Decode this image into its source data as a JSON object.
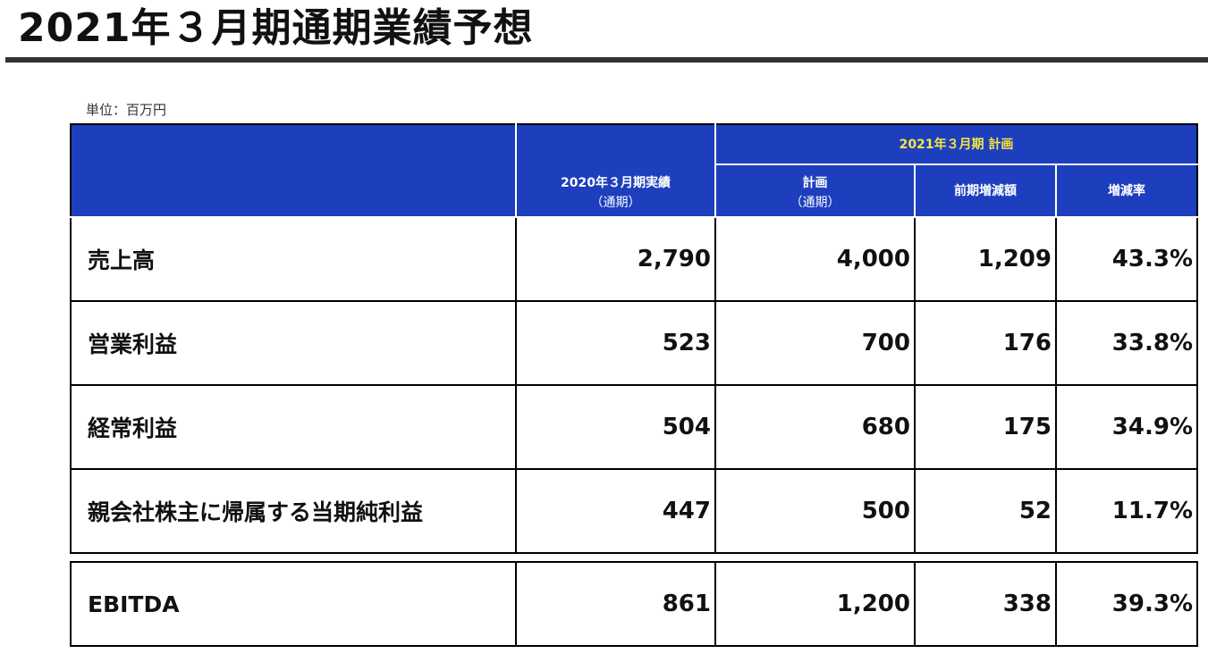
{
  "title": "2021年３月期通期業績予想",
  "unit": "単位：百万円",
  "headers": {
    "plan_group": "2021年３月期 計画",
    "actual_line1": "2020年３月期実績",
    "actual_line2": "（通期）",
    "plan_line1": "計画",
    "plan_line2": "（通期）",
    "diff": "前期増減額",
    "rate": "増減率"
  },
  "rows": [
    {
      "label": "売上高",
      "actual": "2,790",
      "plan": "4,000",
      "diff": "1,209",
      "rate": "43.3%"
    },
    {
      "label": "営業利益",
      "actual": "523",
      "plan": "700",
      "diff": "176",
      "rate": "33.8%"
    },
    {
      "label": "経常利益",
      "actual": "504",
      "plan": "680",
      "diff": "175",
      "rate": "34.9%"
    },
    {
      "label": "親会社株主に帰属する当期純利益",
      "actual": "447",
      "plan": "500",
      "diff": "52",
      "rate": "11.7%"
    }
  ],
  "ebitda": {
    "label": "EBITDA",
    "actual": "861",
    "plan": "1,200",
    "diff": "338",
    "rate": "39.3%"
  },
  "colors": {
    "header_bg": "#1d3fbe",
    "header_accent_text": "#f5e642"
  }
}
